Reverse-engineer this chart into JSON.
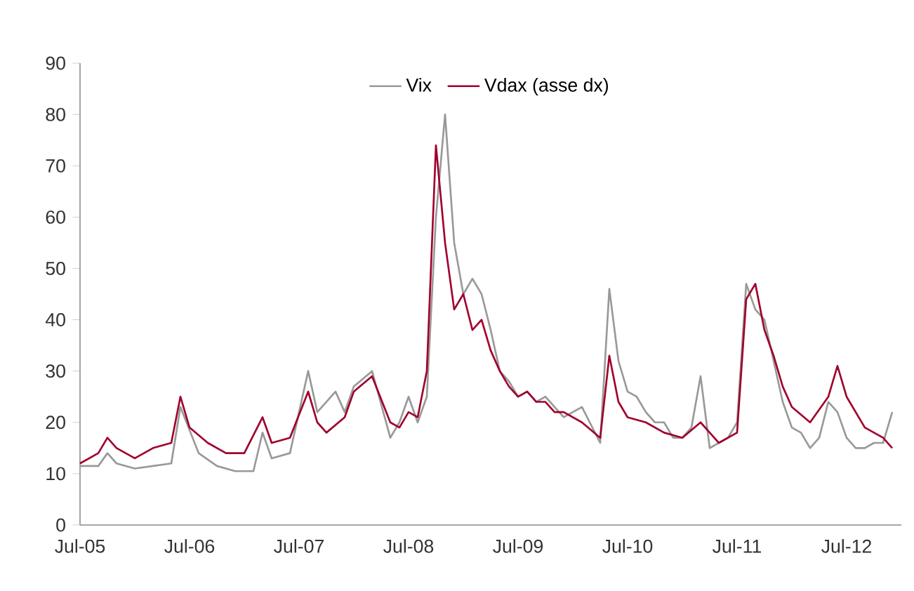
{
  "chart_data": {
    "type": "line",
    "legend": "top",
    "ylim": [
      0,
      90
    ],
    "yticks": [
      0,
      10,
      20,
      30,
      40,
      50,
      60,
      70,
      80,
      90
    ],
    "xlim": [
      "2005-07",
      "2013-01"
    ],
    "xticks": [
      {
        "value": "2005-07",
        "label": "Jul-05"
      },
      {
        "value": "2006-07",
        "label": "Jul-06"
      },
      {
        "value": "2007-07",
        "label": "Jul-07"
      },
      {
        "value": "2008-07",
        "label": "Jul-08"
      },
      {
        "value": "2009-07",
        "label": "Jul-09"
      },
      {
        "value": "2010-07",
        "label": "Jul-10"
      },
      {
        "value": "2011-07",
        "label": "Jul-11"
      },
      {
        "value": "2012-07",
        "label": "Jul-12"
      }
    ],
    "series": [
      {
        "name": "Vix",
        "color": "#999999",
        "x": [
          "2005-07",
          "2005-09",
          "2005-10",
          "2005-11",
          "2006-01",
          "2006-03",
          "2006-05",
          "2006-06",
          "2006-08",
          "2006-10",
          "2006-12",
          "2007-02",
          "2007-03",
          "2007-04",
          "2007-06",
          "2007-08",
          "2007-09",
          "2007-11",
          "2007-12",
          "2008-01",
          "2008-03",
          "2008-05",
          "2008-06",
          "2008-07",
          "2008-08",
          "2008-09",
          "2008-10",
          "2008-11",
          "2008-12",
          "2009-01",
          "2009-02",
          "2009-03",
          "2009-04",
          "2009-05",
          "2009-06",
          "2009-07",
          "2009-08",
          "2009-09",
          "2009-10",
          "2009-11",
          "2009-12",
          "2010-01",
          "2010-02",
          "2010-04",
          "2010-05",
          "2010-06",
          "2010-07",
          "2010-08",
          "2010-09",
          "2010-10",
          "2010-11",
          "2010-12",
          "2011-01",
          "2011-02",
          "2011-03",
          "2011-04",
          "2011-06",
          "2011-07",
          "2011-08",
          "2011-09",
          "2011-10",
          "2011-11",
          "2011-12",
          "2012-01",
          "2012-02",
          "2012-03",
          "2012-04",
          "2012-05",
          "2012-06",
          "2012-07",
          "2012-08",
          "2012-09",
          "2012-10",
          "2012-11",
          "2012-12"
        ],
        "values": [
          11.5,
          11.5,
          14,
          12,
          11,
          11.5,
          12,
          23,
          14,
          11.5,
          10.5,
          10.5,
          18,
          13,
          14,
          30,
          22,
          26,
          22,
          27,
          30,
          17,
          20,
          25,
          20,
          25,
          60,
          80,
          55,
          45,
          48,
          45,
          38,
          30,
          28,
          25,
          26,
          24,
          25,
          23,
          21,
          22,
          23,
          16,
          46,
          32,
          26,
          25,
          22,
          20,
          20,
          17,
          17,
          19,
          29,
          15,
          17,
          20,
          47,
          42,
          40,
          32,
          24,
          19,
          18,
          15,
          17,
          24,
          22,
          17,
          15,
          15,
          16,
          16,
          22
        ]
      },
      {
        "name": "Vdax (asse dx)",
        "color": "#a0002c",
        "x": [
          "2005-07",
          "2005-09",
          "2005-10",
          "2005-11",
          "2006-01",
          "2006-03",
          "2006-05",
          "2006-06",
          "2006-07",
          "2006-09",
          "2006-11",
          "2007-01",
          "2007-03",
          "2007-04",
          "2007-06",
          "2007-08",
          "2007-09",
          "2007-10",
          "2007-12",
          "2008-01",
          "2008-03",
          "2008-05",
          "2008-06",
          "2008-07",
          "2008-08",
          "2008-09",
          "2008-10",
          "2008-11",
          "2008-12",
          "2009-01",
          "2009-02",
          "2009-03",
          "2009-04",
          "2009-05",
          "2009-06",
          "2009-07",
          "2009-08",
          "2009-09",
          "2009-10",
          "2009-11",
          "2009-12",
          "2010-02",
          "2010-04",
          "2010-05",
          "2010-06",
          "2010-07",
          "2010-09",
          "2010-11",
          "2011-01",
          "2011-03",
          "2011-05",
          "2011-07",
          "2011-08",
          "2011-09",
          "2011-10",
          "2011-11",
          "2011-12",
          "2012-01",
          "2012-03",
          "2012-05",
          "2012-06",
          "2012-07",
          "2012-09",
          "2012-10",
          "2012-11",
          "2012-12"
        ],
        "values": [
          12,
          14,
          17,
          15,
          13,
          15,
          16,
          25,
          19,
          16,
          14,
          14,
          21,
          16,
          17,
          26,
          20,
          18,
          21,
          26,
          29,
          20,
          19,
          22,
          21,
          30,
          74,
          55,
          42,
          45,
          38,
          40,
          34,
          30,
          27,
          25,
          26,
          24,
          24,
          22,
          22,
          20,
          17,
          33,
          24,
          21,
          20,
          18,
          17,
          20,
          16,
          18,
          44,
          47,
          38,
          33,
          27,
          23,
          20,
          25,
          31,
          25,
          19,
          18,
          17,
          15
        ]
      }
    ]
  }
}
